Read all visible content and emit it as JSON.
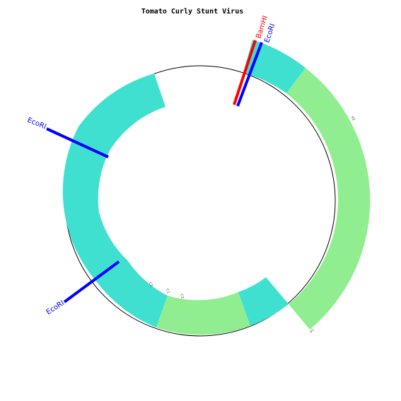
{
  "title": "Tomato Curly Stunt Virus",
  "colors": {
    "cyan": "#40e0d0",
    "green": "#90ee90",
    "ring": "#000000",
    "ecori": "#0000ff",
    "bamhi": "#ff0000"
  },
  "restriction_sites": [
    {
      "name": "BamHI",
      "color": "#ff0000"
    },
    {
      "name": "EcoRI",
      "color": "#0000ff"
    },
    {
      "name": "EcoRI",
      "color": "#0000ff"
    },
    {
      "name": "EcoRI",
      "color": "#0000ff"
    }
  ],
  "feature_labels": [
    "V2",
    "V1",
    "C2",
    "C1",
    "C3"
  ]
}
